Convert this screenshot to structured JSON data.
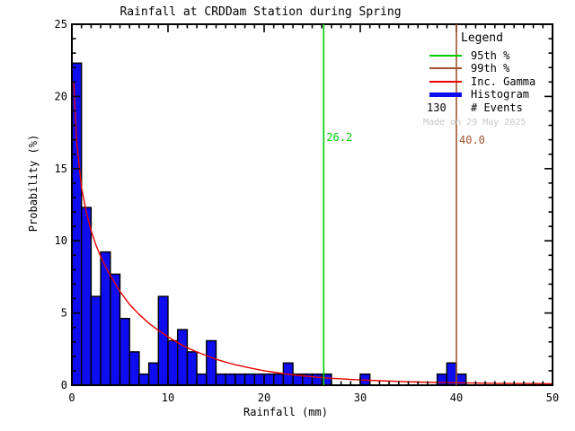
{
  "title": "Rainfall at CRDDam Station during Spring",
  "watermark": {
    "text": "Made on 29 May 2025",
    "color": "#C8C8C8"
  },
  "legend": {
    "heading": "Legend",
    "items": [
      {
        "label": "95th %",
        "color": "#00CC00",
        "sample": "thin-line"
      },
      {
        "label": "99th %",
        "color": "#A0522D",
        "sample": "thin-line"
      },
      {
        "label": "Inc. Gamma",
        "color": "#E80000",
        "sample": "thin-line"
      },
      {
        "label": "Histogram",
        "color": "#0D0DEF",
        "sample": "thick-line"
      },
      {
        "label": "# Events",
        "value": "130"
      }
    ]
  },
  "chart_data": {
    "type": "bar",
    "title": "Rainfall at CRDDam Station during Spring",
    "xlabel": "Rainfall (mm)",
    "ylabel": "Probability (%)",
    "xlim": [
      0,
      50
    ],
    "ylim": [
      0,
      25
    ],
    "xticks": [
      0,
      10,
      20,
      30,
      40,
      50
    ],
    "yticks": [
      0,
      5,
      10,
      15,
      20,
      25
    ],
    "x_minor_step": 1,
    "y_minor_step": 1,
    "grid": false,
    "legend_position": "top-right",
    "n_events": 130,
    "bin_width": 1,
    "bins": [
      {
        "x": 0,
        "h": 22.31
      },
      {
        "x": 1,
        "h": 12.31
      },
      {
        "x": 2,
        "h": 6.15
      },
      {
        "x": 3,
        "h": 9.23
      },
      {
        "x": 4,
        "h": 7.69
      },
      {
        "x": 5,
        "h": 4.62
      },
      {
        "x": 6,
        "h": 2.31
      },
      {
        "x": 7,
        "h": 0.77
      },
      {
        "x": 8,
        "h": 1.54
      },
      {
        "x": 9,
        "h": 6.15
      },
      {
        "x": 10,
        "h": 3.08
      },
      {
        "x": 11,
        "h": 3.85
      },
      {
        "x": 12,
        "h": 2.31
      },
      {
        "x": 13,
        "h": 0.77
      },
      {
        "x": 14,
        "h": 3.08
      },
      {
        "x": 15,
        "h": 0.77
      },
      {
        "x": 16,
        "h": 0.77
      },
      {
        "x": 17,
        "h": 0.77
      },
      {
        "x": 18,
        "h": 0.77
      },
      {
        "x": 19,
        "h": 0.77
      },
      {
        "x": 20,
        "h": 0.77
      },
      {
        "x": 21,
        "h": 0.77
      },
      {
        "x": 22,
        "h": 1.54
      },
      {
        "x": 23,
        "h": 0.77
      },
      {
        "x": 24,
        "h": 0.77
      },
      {
        "x": 25,
        "h": 0.77
      },
      {
        "x": 26,
        "h": 0.77
      },
      {
        "x": 30,
        "h": 0.77
      },
      {
        "x": 38,
        "h": 0.77
      },
      {
        "x": 39,
        "h": 1.54
      },
      {
        "x": 40,
        "h": 0.77
      }
    ],
    "gamma_curve": {
      "x": [
        0.2,
        0.5,
        1,
        1.5,
        2,
        2.5,
        3,
        3.5,
        4,
        5,
        6,
        7,
        8,
        9,
        10,
        11,
        12,
        13,
        14,
        15,
        16,
        17,
        18,
        19,
        20,
        21,
        22,
        23,
        24,
        25,
        26,
        27,
        28,
        29,
        30,
        32,
        34,
        36,
        38,
        40,
        42,
        44,
        46,
        48,
        50
      ],
      "y": [
        21.0,
        16.9,
        13.7,
        12.0,
        10.7,
        9.7,
        8.9,
        8.2,
        7.6,
        6.5,
        5.6,
        4.9,
        4.3,
        3.8,
        3.35,
        2.95,
        2.6,
        2.3,
        2.05,
        1.8,
        1.6,
        1.42,
        1.27,
        1.13,
        1.0,
        0.9,
        0.8,
        0.72,
        0.65,
        0.58,
        0.53,
        0.48,
        0.44,
        0.4,
        0.37,
        0.31,
        0.26,
        0.22,
        0.19,
        0.17,
        0.15,
        0.13,
        0.12,
        0.11,
        0.1
      ]
    },
    "percentiles": {
      "p95": {
        "value": 26.2,
        "label": "26.2",
        "color": "#00CC00"
      },
      "p99": {
        "value": 40.0,
        "label": "40.0",
        "color": "#A0522D"
      }
    },
    "colors": {
      "histogram_fill": "#0D0DEF",
      "histogram_edge": "#000000",
      "gamma_curve": "#E80000",
      "axis": "#000000"
    }
  }
}
